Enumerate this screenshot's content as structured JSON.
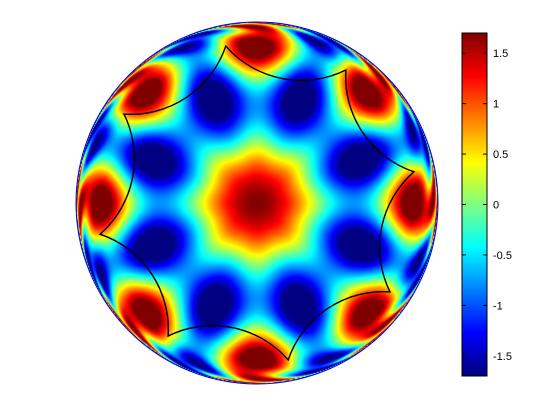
{
  "chart_data": {
    "type": "heatmap",
    "title": "",
    "xlabel": "",
    "ylabel": "",
    "description_shape": "disk",
    "colormap": "jet",
    "clim": [
      -1.7,
      1.7
    ],
    "colorbar": {
      "position": "right",
      "ticks": [
        1.5,
        1,
        0.5,
        0,
        -0.5,
        -1,
        -1.5
      ],
      "tick_labels": [
        "1.5",
        "1",
        "0.5",
        "0",
        "-0.5",
        "-1",
        "-1.5"
      ]
    },
    "field": {
      "center_value": 1.7,
      "symmetry_order": 8,
      "outline_color": "#0000ff",
      "overlay_curve_color": "#000000",
      "overlay_curve": "eight-sided hyperbolic polygon (circular-arc octagon)"
    }
  }
}
